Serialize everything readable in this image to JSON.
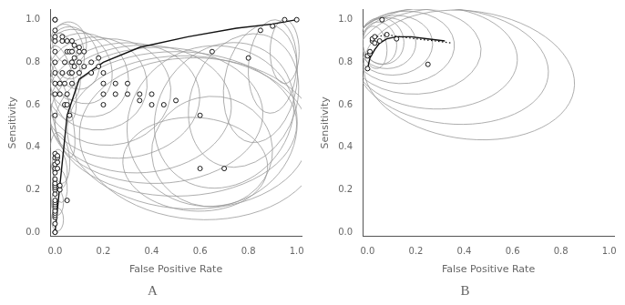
{
  "chart_data": [
    {
      "type": "scatter",
      "title": "A",
      "x_label": "False Positive Rate",
      "y_label": "Sensitivity",
      "xlim": [
        -0.02,
        1.02
      ],
      "ylim": [
        -0.02,
        1.05
      ],
      "xticks": [
        {
          "value": 0,
          "label": "0.0"
        },
        0.2,
        0.4,
        0.6,
        0.8,
        {
          "value": 1,
          "label": "1.0"
        }
      ],
      "yticks": [
        {
          "value": 0,
          "label": "0.0"
        },
        0.2,
        0.4,
        0.6,
        0.8,
        {
          "value": 1,
          "label": "1.0"
        }
      ],
      "grid": false,
      "series": [
        {
          "type": "ellipse",
          "color": "#999999",
          "values": [
            {
              "cx": 0.01,
              "cy": 0.06,
              "rx": 0.025,
              "ry": 0.055,
              "angle": 0
            },
            {
              "cx": 0.01,
              "cy": 0.14,
              "rx": 0.025,
              "ry": 0.06,
              "angle": 0
            },
            {
              "cx": 0.02,
              "cy": 0.22,
              "rx": 0.03,
              "ry": 0.08,
              "angle": 5
            },
            {
              "cx": 0.02,
              "cy": 0.3,
              "rx": 0.03,
              "ry": 0.09,
              "angle": 5
            },
            {
              "cx": 0.02,
              "cy": 0.35,
              "rx": 0.04,
              "ry": 0.12,
              "angle": 5
            },
            {
              "cx": 0.03,
              "cy": 0.55,
              "rx": 0.04,
              "ry": 0.2,
              "angle": 10
            },
            {
              "cx": 0.03,
              "cy": 0.7,
              "rx": 0.05,
              "ry": 0.18,
              "angle": 10
            },
            {
              "cx": 0.04,
              "cy": 0.78,
              "rx": 0.06,
              "ry": 0.16,
              "angle": 10
            },
            {
              "cx": 0.05,
              "cy": 0.85,
              "rx": 0.07,
              "ry": 0.13,
              "angle": 8
            },
            {
              "cx": 0.06,
              "cy": 0.89,
              "rx": 0.07,
              "ry": 0.1,
              "angle": 5
            },
            {
              "cx": 0.08,
              "cy": 0.82,
              "rx": 0.1,
              "ry": 0.15,
              "angle": 15
            },
            {
              "cx": 0.1,
              "cy": 0.78,
              "rx": 0.13,
              "ry": 0.18,
              "angle": 20
            },
            {
              "cx": 0.13,
              "cy": 0.74,
              "rx": 0.17,
              "ry": 0.2,
              "angle": 20
            },
            {
              "cx": 0.17,
              "cy": 0.7,
              "rx": 0.21,
              "ry": 0.22,
              "angle": 18
            },
            {
              "cx": 0.22,
              "cy": 0.66,
              "rx": 0.26,
              "ry": 0.25,
              "angle": 15
            },
            {
              "cx": 0.28,
              "cy": 0.62,
              "rx": 0.32,
              "ry": 0.27,
              "angle": 10
            },
            {
              "cx": 0.35,
              "cy": 0.58,
              "rx": 0.38,
              "ry": 0.3,
              "angle": 5
            },
            {
              "cx": 0.42,
              "cy": 0.55,
              "rx": 0.44,
              "ry": 0.32,
              "angle": 2
            },
            {
              "cx": 0.5,
              "cy": 0.51,
              "rx": 0.5,
              "ry": 0.34,
              "angle": 0
            },
            {
              "cx": 0.55,
              "cy": 0.47,
              "rx": 0.5,
              "ry": 0.36,
              "angle": -3
            },
            {
              "cx": 0.6,
              "cy": 0.44,
              "rx": 0.5,
              "ry": 0.38,
              "angle": -5
            },
            {
              "cx": 0.65,
              "cy": 0.5,
              "rx": 0.35,
              "ry": 0.38,
              "angle": -15
            },
            {
              "cx": 0.7,
              "cy": 0.55,
              "rx": 0.28,
              "ry": 0.35,
              "angle": -20
            },
            {
              "cx": 0.78,
              "cy": 0.62,
              "rx": 0.22,
              "ry": 0.32,
              "angle": -15
            },
            {
              "cx": 0.85,
              "cy": 0.7,
              "rx": 0.15,
              "ry": 0.28,
              "angle": -8
            },
            {
              "cx": 0.9,
              "cy": 0.78,
              "rx": 0.1,
              "ry": 0.22,
              "angle": -3
            },
            {
              "cx": 0.95,
              "cy": 0.85,
              "rx": 0.06,
              "ry": 0.15,
              "angle": 0
            },
            {
              "cx": 0.58,
              "cy": 0.32,
              "rx": 0.3,
              "ry": 0.22,
              "angle": -5
            },
            {
              "cx": 0.65,
              "cy": 0.38,
              "rx": 0.25,
              "ry": 0.26,
              "angle": -8
            }
          ]
        },
        {
          "type": "line",
          "color": "#111111",
          "line_style": "solid",
          "values": [
            [
              0.0,
              0.0
            ],
            [
              0.05,
              0.55
            ],
            [
              0.1,
              0.72
            ],
            [
              0.2,
              0.8
            ],
            [
              0.35,
              0.87
            ],
            [
              0.55,
              0.92
            ],
            [
              0.75,
              0.96
            ],
            [
              0.9,
              0.98
            ],
            [
              1.0,
              1.0
            ]
          ]
        },
        {
          "type": "scatter",
          "color": "#000000",
          "marker": "circle",
          "values": [
            [
              0.0,
              0.0
            ],
            [
              0.0,
              0.0
            ],
            [
              0.0,
              0.04
            ],
            [
              0.0,
              0.07
            ],
            [
              0.0,
              0.08
            ],
            [
              0.0,
              0.09
            ],
            [
              0.0,
              0.1
            ],
            [
              0.0,
              0.12
            ],
            [
              0.0,
              0.13
            ],
            [
              0.0,
              0.14
            ],
            [
              0.0,
              0.15
            ],
            [
              0.0,
              0.18
            ],
            [
              0.0,
              0.2
            ],
            [
              0.0,
              0.21
            ],
            [
              0.0,
              0.22
            ],
            [
              0.0,
              0.23
            ],
            [
              0.0,
              0.25
            ],
            [
              0.0,
              0.28
            ],
            [
              0.0,
              0.3
            ],
            [
              0.0,
              0.32
            ],
            [
              0.0,
              0.35
            ],
            [
              0.0,
              0.37
            ],
            [
              0.0,
              0.55
            ],
            [
              0.0,
              0.65
            ],
            [
              0.0,
              0.7
            ],
            [
              0.0,
              0.75
            ],
            [
              0.0,
              0.8
            ],
            [
              0.0,
              0.85
            ],
            [
              0.0,
              0.9
            ],
            [
              0.0,
              0.92
            ],
            [
              0.0,
              0.95
            ],
            [
              0.0,
              1.0
            ],
            [
              0.0,
              1.0
            ],
            [
              0.01,
              0.3
            ],
            [
              0.01,
              0.33
            ],
            [
              0.01,
              0.35
            ],
            [
              0.01,
              0.36
            ],
            [
              0.02,
              0.2
            ],
            [
              0.02,
              0.22
            ],
            [
              0.02,
              0.65
            ],
            [
              0.02,
              0.7
            ],
            [
              0.03,
              0.75
            ],
            [
              0.03,
              0.9
            ],
            [
              0.03,
              0.92
            ],
            [
              0.04,
              0.6
            ],
            [
              0.04,
              0.7
            ],
            [
              0.04,
              0.8
            ],
            [
              0.05,
              0.15
            ],
            [
              0.05,
              0.6
            ],
            [
              0.05,
              0.65
            ],
            [
              0.05,
              0.85
            ],
            [
              0.05,
              0.9
            ],
            [
              0.06,
              0.55
            ],
            [
              0.06,
              0.75
            ],
            [
              0.06,
              0.85
            ],
            [
              0.07,
              0.7
            ],
            [
              0.07,
              0.75
            ],
            [
              0.07,
              0.8
            ],
            [
              0.07,
              0.85
            ],
            [
              0.07,
              0.9
            ],
            [
              0.08,
              0.78
            ],
            [
              0.08,
              0.82
            ],
            [
              0.08,
              0.88
            ],
            [
              0.1,
              0.75
            ],
            [
              0.1,
              0.8
            ],
            [
              0.1,
              0.85
            ],
            [
              0.1,
              0.87
            ],
            [
              0.12,
              0.78
            ],
            [
              0.12,
              0.85
            ],
            [
              0.15,
              0.75
            ],
            [
              0.15,
              0.8
            ],
            [
              0.18,
              0.78
            ],
            [
              0.18,
              0.82
            ],
            [
              0.2,
              0.6
            ],
            [
              0.2,
              0.65
            ],
            [
              0.2,
              0.7
            ],
            [
              0.2,
              0.75
            ],
            [
              0.25,
              0.65
            ],
            [
              0.25,
              0.7
            ],
            [
              0.3,
              0.65
            ],
            [
              0.3,
              0.7
            ],
            [
              0.35,
              0.62
            ],
            [
              0.35,
              0.65
            ],
            [
              0.4,
              0.6
            ],
            [
              0.4,
              0.65
            ],
            [
              0.45,
              0.6
            ],
            [
              0.5,
              0.62
            ],
            [
              0.6,
              0.55
            ],
            [
              0.6,
              0.3
            ],
            [
              0.65,
              0.85
            ],
            [
              0.7,
              0.3
            ],
            [
              0.8,
              0.82
            ],
            [
              0.85,
              0.95
            ],
            [
              0.9,
              0.97
            ],
            [
              0.95,
              1.0
            ],
            [
              1.0,
              1.0
            ]
          ]
        }
      ]
    },
    {
      "type": "scatter",
      "title": "B",
      "x_label": "False Positive Rate",
      "y_label": "Sensitivity",
      "xlim": [
        -0.02,
        1.02
      ],
      "ylim": [
        -0.02,
        1.05
      ],
      "xticks": [
        {
          "value": 0,
          "label": "0.0"
        },
        0.2,
        0.4,
        0.6,
        0.8,
        {
          "value": 1,
          "label": "1.0"
        }
      ],
      "yticks": [
        {
          "value": 0,
          "label": "0.0"
        },
        0.2,
        0.4,
        0.6,
        0.8,
        {
          "value": 1,
          "label": "1.0"
        }
      ],
      "grid": false,
      "series": [
        {
          "type": "ellipse",
          "color": "#999999",
          "values": [
            {
              "cx": 0.03,
              "cy": 0.87,
              "rx": 0.05,
              "ry": 0.1,
              "angle": 5
            },
            {
              "cx": 0.05,
              "cy": 0.89,
              "rx": 0.07,
              "ry": 0.1,
              "angle": 8
            },
            {
              "cx": 0.06,
              "cy": 0.9,
              "rx": 0.09,
              "ry": 0.11,
              "angle": 10
            },
            {
              "cx": 0.08,
              "cy": 0.89,
              "rx": 0.12,
              "ry": 0.12,
              "angle": 12
            },
            {
              "cx": 0.11,
              "cy": 0.88,
              "rx": 0.16,
              "ry": 0.14,
              "angle": 10
            },
            {
              "cx": 0.15,
              "cy": 0.87,
              "rx": 0.21,
              "ry": 0.17,
              "angle": 7
            },
            {
              "cx": 0.2,
              "cy": 0.85,
              "rx": 0.27,
              "ry": 0.2,
              "angle": 3
            },
            {
              "cx": 0.28,
              "cy": 0.82,
              "rx": 0.34,
              "ry": 0.24,
              "angle": -2
            },
            {
              "cx": 0.35,
              "cy": 0.78,
              "rx": 0.4,
              "ry": 0.27,
              "angle": -7
            },
            {
              "cx": 0.42,
              "cy": 0.74,
              "rx": 0.44,
              "ry": 0.3,
              "angle": -10
            }
          ]
        },
        {
          "type": "line",
          "color": "#111111",
          "line_style": "solid",
          "values": [
            [
              0.0,
              0.77
            ],
            [
              0.01,
              0.82
            ],
            [
              0.03,
              0.86
            ],
            [
              0.05,
              0.89
            ],
            [
              0.08,
              0.91
            ],
            [
              0.12,
              0.92
            ],
            [
              0.18,
              0.92
            ],
            [
              0.25,
              0.91
            ],
            [
              0.32,
              0.9
            ]
          ]
        },
        {
          "type": "line",
          "color": "#111111",
          "line_style": "dotted",
          "values": [
            [
              0.01,
              0.91
            ],
            [
              0.04,
              0.92
            ],
            [
              0.08,
              0.93
            ],
            [
              0.13,
              0.92
            ],
            [
              0.2,
              0.91
            ],
            [
              0.28,
              0.9
            ],
            [
              0.35,
              0.89
            ]
          ]
        },
        {
          "type": "scatter",
          "color": "#000000",
          "marker": "circle",
          "values": [
            [
              0.0,
              0.77
            ],
            [
              0.0,
              0.83
            ],
            [
              0.01,
              0.84
            ],
            [
              0.01,
              0.85
            ],
            [
              0.02,
              0.9
            ],
            [
              0.02,
              0.91
            ],
            [
              0.03,
              0.89
            ],
            [
              0.03,
              0.92
            ],
            [
              0.05,
              0.9
            ],
            [
              0.06,
              1.0
            ],
            [
              0.08,
              0.93
            ],
            [
              0.12,
              0.91
            ],
            [
              0.25,
              0.79
            ]
          ]
        }
      ]
    }
  ]
}
